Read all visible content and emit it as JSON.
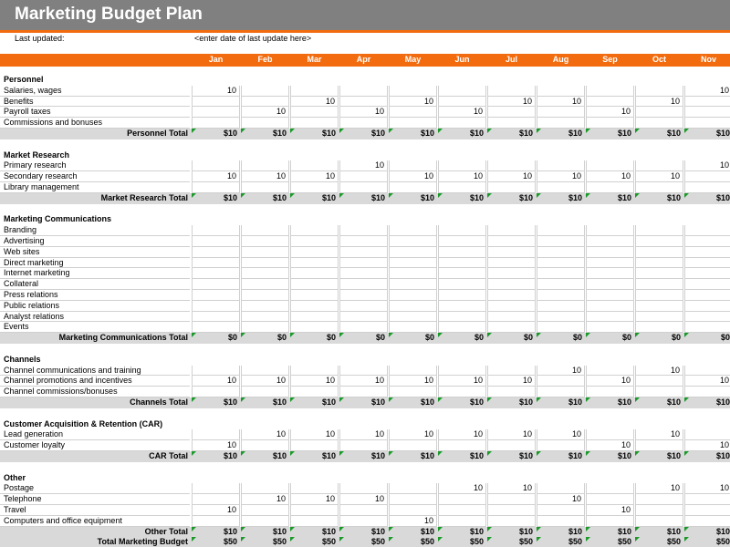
{
  "header": {
    "title": "Marketing Budget Plan",
    "last_updated_label": "Last updated:",
    "last_updated_value": "<enter date of last update here>"
  },
  "table": {
    "months": [
      "Jan",
      "Feb",
      "Mar",
      "Apr",
      "May",
      "Jun",
      "Jul",
      "Aug",
      "Sep",
      "Oct",
      "Nov"
    ],
    "sections": [
      {
        "title": "Personnel",
        "rows": [
          {
            "label": "Salaries, wages",
            "values": [
              10,
              null,
              null,
              null,
              null,
              null,
              null,
              null,
              null,
              null,
              10
            ]
          },
          {
            "label": "Benefits",
            "values": [
              null,
              null,
              10,
              null,
              10,
              null,
              10,
              10,
              null,
              10,
              null
            ]
          },
          {
            "label": "Payroll taxes",
            "values": [
              null,
              10,
              null,
              10,
              null,
              10,
              null,
              null,
              10,
              null,
              null
            ]
          },
          {
            "label": "Commissions and bonuses",
            "values": [
              null,
              null,
              null,
              null,
              null,
              null,
              null,
              null,
              null,
              null,
              null
            ]
          }
        ],
        "total": {
          "label": "Personnel Total",
          "values": [
            "$10",
            "$10",
            "$10",
            "$10",
            "$10",
            "$10",
            "$10",
            "$10",
            "$10",
            "$10",
            "$10"
          ]
        }
      },
      {
        "title": "Market Research",
        "rows": [
          {
            "label": "Primary research",
            "values": [
              null,
              null,
              null,
              10,
              null,
              null,
              null,
              null,
              null,
              null,
              10
            ]
          },
          {
            "label": "Secondary research",
            "values": [
              10,
              10,
              10,
              null,
              10,
              10,
              10,
              10,
              10,
              10,
              null
            ]
          },
          {
            "label": "Library management",
            "values": [
              null,
              null,
              null,
              null,
              null,
              null,
              null,
              null,
              null,
              null,
              null
            ]
          }
        ],
        "total": {
          "label": "Market Research Total",
          "values": [
            "$10",
            "$10",
            "$10",
            "$10",
            "$10",
            "$10",
            "$10",
            "$10",
            "$10",
            "$10",
            "$10"
          ]
        }
      },
      {
        "title": "Marketing Communications",
        "rows": [
          {
            "label": "Branding",
            "values": [
              null,
              null,
              null,
              null,
              null,
              null,
              null,
              null,
              null,
              null,
              null
            ]
          },
          {
            "label": "Advertising",
            "values": [
              null,
              null,
              null,
              null,
              null,
              null,
              null,
              null,
              null,
              null,
              null
            ]
          },
          {
            "label": "Web sites",
            "values": [
              null,
              null,
              null,
              null,
              null,
              null,
              null,
              null,
              null,
              null,
              null
            ]
          },
          {
            "label": "Direct marketing",
            "values": [
              null,
              null,
              null,
              null,
              null,
              null,
              null,
              null,
              null,
              null,
              null
            ]
          },
          {
            "label": "Internet marketing",
            "values": [
              null,
              null,
              null,
              null,
              null,
              null,
              null,
              null,
              null,
              null,
              null
            ]
          },
          {
            "label": "Collateral",
            "values": [
              null,
              null,
              null,
              null,
              null,
              null,
              null,
              null,
              null,
              null,
              null
            ]
          },
          {
            "label": "Press relations",
            "values": [
              null,
              null,
              null,
              null,
              null,
              null,
              null,
              null,
              null,
              null,
              null
            ]
          },
          {
            "label": "Public relations",
            "values": [
              null,
              null,
              null,
              null,
              null,
              null,
              null,
              null,
              null,
              null,
              null
            ]
          },
          {
            "label": "Analyst relations",
            "values": [
              null,
              null,
              null,
              null,
              null,
              null,
              null,
              null,
              null,
              null,
              null
            ]
          },
          {
            "label": "Events",
            "values": [
              null,
              null,
              null,
              null,
              null,
              null,
              null,
              null,
              null,
              null,
              null
            ]
          }
        ],
        "total": {
          "label": "Marketing Communications Total",
          "values": [
            "$0",
            "$0",
            "$0",
            "$0",
            "$0",
            "$0",
            "$0",
            "$0",
            "$0",
            "$0",
            "$0"
          ]
        }
      },
      {
        "title": "Channels",
        "rows": [
          {
            "label": "Channel communications and training",
            "values": [
              null,
              null,
              null,
              null,
              null,
              null,
              null,
              10,
              null,
              10,
              null
            ]
          },
          {
            "label": "Channel promotions and incentives",
            "values": [
              10,
              10,
              10,
              10,
              10,
              10,
              10,
              null,
              10,
              null,
              10
            ]
          },
          {
            "label": "Channel commissions/bonuses",
            "values": [
              null,
              null,
              null,
              null,
              null,
              null,
              null,
              null,
              null,
              null,
              null
            ]
          }
        ],
        "total": {
          "label": "Channels Total",
          "values": [
            "$10",
            "$10",
            "$10",
            "$10",
            "$10",
            "$10",
            "$10",
            "$10",
            "$10",
            "$10",
            "$10"
          ]
        }
      },
      {
        "title": "Customer Acquisition & Retention (CAR)",
        "rows": [
          {
            "label": "Lead generation",
            "values": [
              null,
              10,
              10,
              10,
              10,
              10,
              10,
              10,
              null,
              10,
              null
            ]
          },
          {
            "label": "Customer loyalty",
            "values": [
              10,
              null,
              null,
              null,
              null,
              null,
              null,
              null,
              10,
              null,
              10
            ]
          }
        ],
        "total": {
          "label": "CAR Total",
          "values": [
            "$10",
            "$10",
            "$10",
            "$10",
            "$10",
            "$10",
            "$10",
            "$10",
            "$10",
            "$10",
            "$10"
          ]
        }
      },
      {
        "title": "Other",
        "rows": [
          {
            "label": "Postage",
            "values": [
              null,
              null,
              null,
              null,
              null,
              10,
              10,
              null,
              null,
              10,
              10
            ]
          },
          {
            "label": "Telephone",
            "values": [
              null,
              10,
              10,
              10,
              null,
              null,
              null,
              10,
              null,
              null,
              null
            ]
          },
          {
            "label": "Travel",
            "values": [
              10,
              null,
              null,
              null,
              null,
              null,
              null,
              null,
              10,
              null,
              null
            ]
          },
          {
            "label": "Computers and office equipment",
            "values": [
              null,
              null,
              null,
              null,
              10,
              null,
              null,
              null,
              null,
              null,
              null
            ]
          }
        ],
        "total": {
          "label": "Other Total",
          "values": [
            "$10",
            "$10",
            "$10",
            "$10",
            "$10",
            "$10",
            "$10",
            "$10",
            "$10",
            "$10",
            "$10"
          ]
        }
      }
    ],
    "grand_total": {
      "label": "Total Marketing Budget",
      "values": [
        "$50",
        "$50",
        "$50",
        "$50",
        "$50",
        "$50",
        "$50",
        "$50",
        "$50",
        "$50",
        "$50"
      ]
    }
  }
}
